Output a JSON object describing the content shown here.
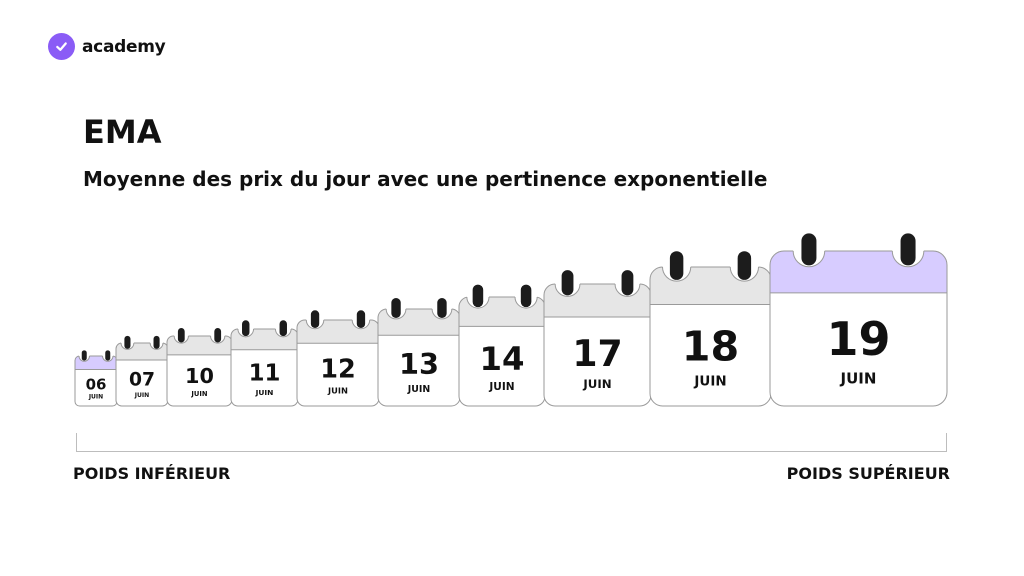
{
  "brand": {
    "name": "academy",
    "accent": "#8a5cf6"
  },
  "title": "EMA",
  "subtitle": "Moyenne des prix du jour avec une pertinence exponentielle",
  "calendars": [
    {
      "day": "06",
      "month": "JUIN",
      "highlight": true
    },
    {
      "day": "07",
      "month": "JUIN",
      "highlight": false
    },
    {
      "day": "10",
      "month": "JUIN",
      "highlight": false
    },
    {
      "day": "11",
      "month": "JUIN",
      "highlight": false
    },
    {
      "day": "12",
      "month": "JUIN",
      "highlight": false
    },
    {
      "day": "13",
      "month": "JUIN",
      "highlight": false
    },
    {
      "day": "14",
      "month": "JUIN",
      "highlight": false
    },
    {
      "day": "17",
      "month": "JUIN",
      "highlight": false
    },
    {
      "day": "18",
      "month": "JUIN",
      "highlight": false
    },
    {
      "day": "19",
      "month": "JUIN",
      "highlight": true
    }
  ],
  "colors": {
    "header_gray": "#e6e6e6",
    "header_highlight": "#d7ccff",
    "border": "#9a9a9a"
  },
  "scale": {
    "left_label": "POIDS INFÉRIEUR",
    "right_label": "POIDS SUPÉRIEUR"
  }
}
